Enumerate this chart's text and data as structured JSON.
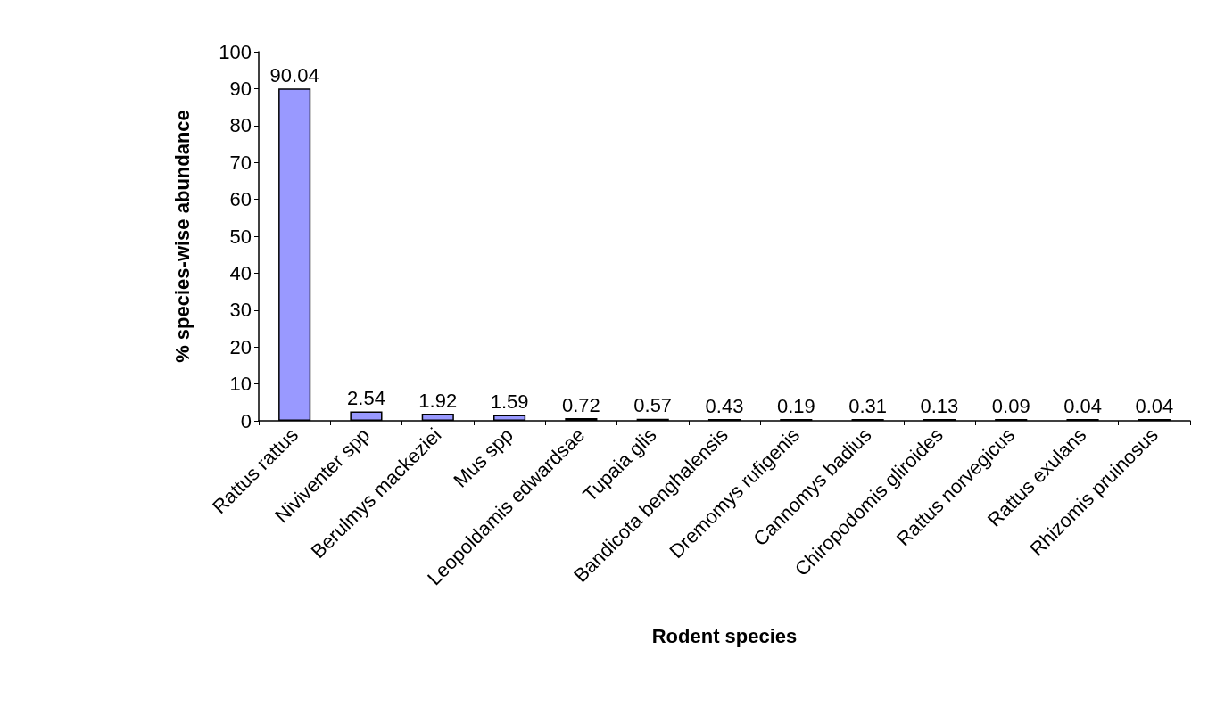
{
  "chart_data": {
    "type": "bar",
    "xlabel": "Rodent species",
    "ylabel": "% species-wise abundance",
    "categories": [
      "Rattus rattus",
      "Niviventer spp",
      "Berulmys mackeziei",
      "Mus spp",
      "Leopoldamis edwardsae",
      "Tupaia glis",
      "Bandicota benghalensis",
      "Dremomys rufigenis",
      "Cannomys badius",
      "Chiropodomis gliroides",
      "Rattus norvegicus",
      "Rattus exulans",
      "Rhizomis pruinosus"
    ],
    "values": [
      90.04,
      2.54,
      1.92,
      1.59,
      0.72,
      0.57,
      0.43,
      0.19,
      0.31,
      0.13,
      0.09,
      0.04,
      0.04
    ],
    "color": "#9999ff",
    "ylim": [
      0,
      100
    ],
    "yticks": [
      0,
      10,
      20,
      30,
      40,
      50,
      60,
      70,
      80,
      90,
      100
    ],
    "data_labels": true,
    "grid": false
  }
}
